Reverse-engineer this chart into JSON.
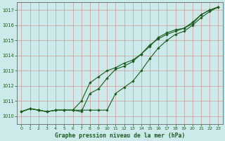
{
  "title": "Graphe pression niveau de la mer (hPa)",
  "background_color": "#cceaea",
  "plot_bg_color": "#cceaea",
  "grid_color": "#cc9999",
  "line_color": "#1a5c1a",
  "marker_color": "#1a5c1a",
  "ylim": [
    1009.5,
    1017.5
  ],
  "yticks": [
    1010,
    1011,
    1012,
    1013,
    1014,
    1015,
    1016,
    1017
  ],
  "xlim": [
    -0.5,
    23.5
  ],
  "xticks": [
    0,
    1,
    2,
    3,
    4,
    5,
    6,
    7,
    8,
    9,
    10,
    11,
    12,
    13,
    14,
    15,
    16,
    17,
    18,
    19,
    20,
    21,
    22,
    23
  ],
  "series1": [
    1010.3,
    1010.5,
    1010.4,
    1010.3,
    1010.4,
    1010.4,
    1010.4,
    1010.3,
    1011.5,
    1011.8,
    1012.5,
    1013.1,
    1013.3,
    1013.6,
    1014.1,
    1014.6,
    1015.2,
    1015.5,
    1015.7,
    1015.8,
    1016.1,
    1016.7,
    1017.0,
    1017.2
  ],
  "series2": [
    1010.3,
    1010.5,
    1010.4,
    1010.3,
    1010.4,
    1010.4,
    1010.4,
    1011.0,
    1012.2,
    1012.6,
    1013.0,
    1013.2,
    1013.5,
    1013.7,
    1014.1,
    1014.7,
    1015.1,
    1015.4,
    1015.6,
    1015.8,
    1016.2,
    1016.7,
    1017.0,
    1017.2
  ],
  "series3": [
    1010.3,
    1010.5,
    1010.4,
    1010.3,
    1010.4,
    1010.4,
    1010.4,
    1010.4,
    1010.4,
    1010.4,
    1010.4,
    1011.5,
    1011.9,
    1012.3,
    1013.0,
    1013.8,
    1014.5,
    1015.0,
    1015.4,
    1015.6,
    1016.0,
    1016.5,
    1016.9,
    1017.2
  ]
}
